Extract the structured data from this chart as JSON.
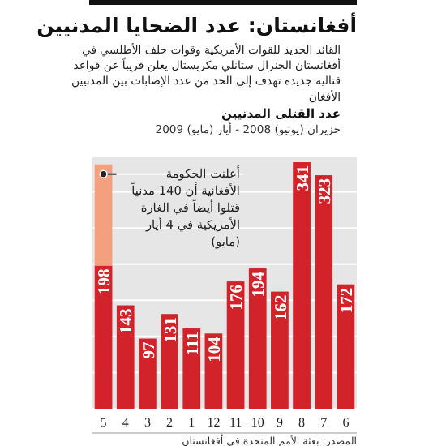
{
  "chart_data": {
    "type": "bar",
    "title": "أفغانستان: عدد الضحايا المدنيين",
    "subtitle": "القائد الجديد للقوات الأمريكية وقوات حلف الأطلسي في أفغانستان الجنرال ستانلي مكريستال يعلن قريباً عن قواعد قتالية جديدة تهدف إلى الحد من عدد الإصابات بين المدنيين الأفغان",
    "ylabel": "عدد القتلى المدنيين",
    "categories": [
      "5",
      "4",
      "3",
      "2",
      "1",
      "12",
      "11",
      "10",
      "9",
      "8",
      "7",
      "6"
    ],
    "stacked": true,
    "series": [
      {
        "color": "#d2232a",
        "values": [
          198,
          143,
          97,
          131,
          111,
          104,
          176,
          194,
          162,
          341,
          323,
          172
        ],
        "value_labels": [
          "198",
          "143",
          "97",
          "131",
          "111",
          "104",
          "176",
          "194",
          "162",
          "341",
          "323",
          "172"
        ]
      },
      {
        "color": "#f4a07e",
        "values": [
          140,
          null,
          null,
          null,
          null,
          null,
          null,
          null,
          null,
          null,
          null,
          null
        ]
      }
    ],
    "ylim": [
      0,
      350
    ],
    "yticks": [
      {
        "value": 0,
        "label": null
      },
      {
        "value": 50,
        "label": null
      },
      {
        "value": 100,
        "label": null
      },
      {
        "value": 150,
        "label": null
      },
      {
        "value": 200,
        "label": null
      },
      {
        "value": 250,
        "label": null
      },
      {
        "value": 300,
        "label": null
      },
      {
        "value": 350,
        "label": null
      }
    ],
    "tick_labels": "x",
    "grid": "y",
    "annotations": [
      "حزيران (يونيو) 2008 - أيار (مايو) 2009",
      {
        "text": "أعلنت الحكومة الأفغانية أن 140 مدنياً قتلوا أيضاً في الغارة الأمريكية في 4 أيار (مايو)",
        "x": "5",
        "y": 338
      },
      "المصدر: بعثة الأمم المتحدة في أفغانستان"
    ]
  }
}
